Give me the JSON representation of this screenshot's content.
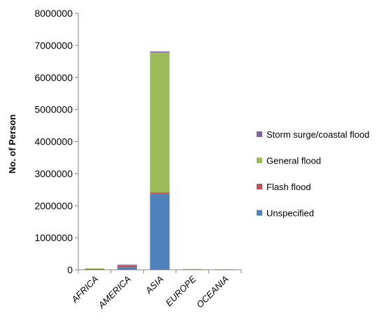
{
  "chart_data": {
    "type": "bar",
    "stacked": true,
    "ylabel": "No. of Person",
    "xlabel": "",
    "ylim": [
      0,
      8000000
    ],
    "yticks": [
      0,
      1000000,
      2000000,
      3000000,
      4000000,
      5000000,
      6000000,
      7000000,
      8000000
    ],
    "categories": [
      "AFRICA",
      "AMERICA",
      "ASIA",
      "EUROPE",
      "OCEANIA"
    ],
    "series": [
      {
        "name": "Unspecified",
        "color": "#4F81BD",
        "values": [
          20000,
          80000,
          2370000,
          2000,
          1000
        ]
      },
      {
        "name": "Flash flood",
        "color": "#C0504D",
        "values": [
          3000,
          50000,
          40000,
          1000,
          0
        ]
      },
      {
        "name": "General flood",
        "color": "#9BBB59",
        "values": [
          5000,
          10000,
          4370000,
          2000,
          1000
        ]
      },
      {
        "name": "Storm surge/coastal flood",
        "color": "#8064A2",
        "values": [
          0,
          2000,
          30000,
          0,
          0
        ]
      }
    ],
    "legend_position": "right",
    "legend_order": [
      "Storm surge/coastal flood",
      "General flood",
      "Flash flood",
      "Unspecified"
    ],
    "grid": false
  }
}
